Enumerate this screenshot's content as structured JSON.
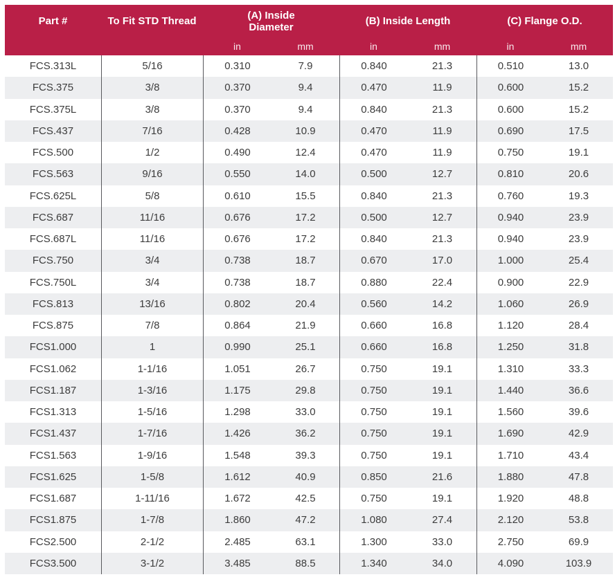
{
  "table": {
    "header": {
      "part": "Part #",
      "thread": "To Fit STD Thread",
      "group_a": "(A) Inside Diameter",
      "group_b": "(B) Inside Length",
      "group_c": "(C) Flange O.D.",
      "unit_in": "in",
      "unit_mm": "mm"
    },
    "columns": [
      "part-number",
      "std-thread",
      "inside-diameter-in",
      "inside-diameter-mm",
      "inside-length-in",
      "inside-length-mm",
      "flange-od-in",
      "flange-od-mm"
    ],
    "rows": [
      [
        "FCS.313L",
        "5/16",
        "0.310",
        "7.9",
        "0.840",
        "21.3",
        "0.510",
        "13.0"
      ],
      [
        "FCS.375",
        "3/8",
        "0.370",
        "9.4",
        "0.470",
        "11.9",
        "0.600",
        "15.2"
      ],
      [
        "FCS.375L",
        "3/8",
        "0.370",
        "9.4",
        "0.840",
        "21.3",
        "0.600",
        "15.2"
      ],
      [
        "FCS.437",
        "7/16",
        "0.428",
        "10.9",
        "0.470",
        "11.9",
        "0.690",
        "17.5"
      ],
      [
        "FCS.500",
        "1/2",
        "0.490",
        "12.4",
        "0.470",
        "11.9",
        "0.750",
        "19.1"
      ],
      [
        "FCS.563",
        "9/16",
        "0.550",
        "14.0",
        "0.500",
        "12.7",
        "0.810",
        "20.6"
      ],
      [
        "FCS.625L",
        "5/8",
        "0.610",
        "15.5",
        "0.840",
        "21.3",
        "0.760",
        "19.3"
      ],
      [
        "FCS.687",
        "11/16",
        "0.676",
        "17.2",
        "0.500",
        "12.7",
        "0.940",
        "23.9"
      ],
      [
        "FCS.687L",
        "11/16",
        "0.676",
        "17.2",
        "0.840",
        "21.3",
        "0.940",
        "23.9"
      ],
      [
        "FCS.750",
        "3/4",
        "0.738",
        "18.7",
        "0.670",
        "17.0",
        "1.000",
        "25.4"
      ],
      [
        "FCS.750L",
        "3/4",
        "0.738",
        "18.7",
        "0.880",
        "22.4",
        "0.900",
        "22.9"
      ],
      [
        "FCS.813",
        "13/16",
        "0.802",
        "20.4",
        "0.560",
        "14.2",
        "1.060",
        "26.9"
      ],
      [
        "FCS.875",
        "7/8",
        "0.864",
        "21.9",
        "0.660",
        "16.8",
        "1.120",
        "28.4"
      ],
      [
        "FCS1.000",
        "1",
        "0.990",
        "25.1",
        "0.660",
        "16.8",
        "1.250",
        "31.8"
      ],
      [
        "FCS1.062",
        "1-1/16",
        "1.051",
        "26.7",
        "0.750",
        "19.1",
        "1.310",
        "33.3"
      ],
      [
        "FCS1.187",
        "1-3/16",
        "1.175",
        "29.8",
        "0.750",
        "19.1",
        "1.440",
        "36.6"
      ],
      [
        "FCS1.313",
        "1-5/16",
        "1.298",
        "33.0",
        "0.750",
        "19.1",
        "1.560",
        "39.6"
      ],
      [
        "FCS1.437",
        "1-7/16",
        "1.426",
        "36.2",
        "0.750",
        "19.1",
        "1.690",
        "42.9"
      ],
      [
        "FCS1.563",
        "1-9/16",
        "1.548",
        "39.3",
        "0.750",
        "19.1",
        "1.710",
        "43.4"
      ],
      [
        "FCS1.625",
        "1-5/8",
        "1.612",
        "40.9",
        "0.850",
        "21.6",
        "1.880",
        "47.8"
      ],
      [
        "FCS1.687",
        "1-11/16",
        "1.672",
        "42.5",
        "0.750",
        "19.1",
        "1.920",
        "48.8"
      ],
      [
        "FCS1.875",
        "1-7/8",
        "1.860",
        "47.2",
        "1.080",
        "27.4",
        "2.120",
        "53.8"
      ],
      [
        "FCS2.500",
        "2-1/2",
        "2.485",
        "63.1",
        "1.300",
        "33.0",
        "2.750",
        "69.9"
      ],
      [
        "FCS3.500",
        "3-1/2",
        "3.485",
        "88.5",
        "1.340",
        "34.0",
        "4.090",
        "103.9"
      ]
    ]
  },
  "colors": {
    "header_bg": "#B91F47",
    "header_text": "#FFFFFF",
    "stripe_bg": "#EDEEF0",
    "body_text": "#3C3C3C",
    "divider": "#57585C"
  }
}
